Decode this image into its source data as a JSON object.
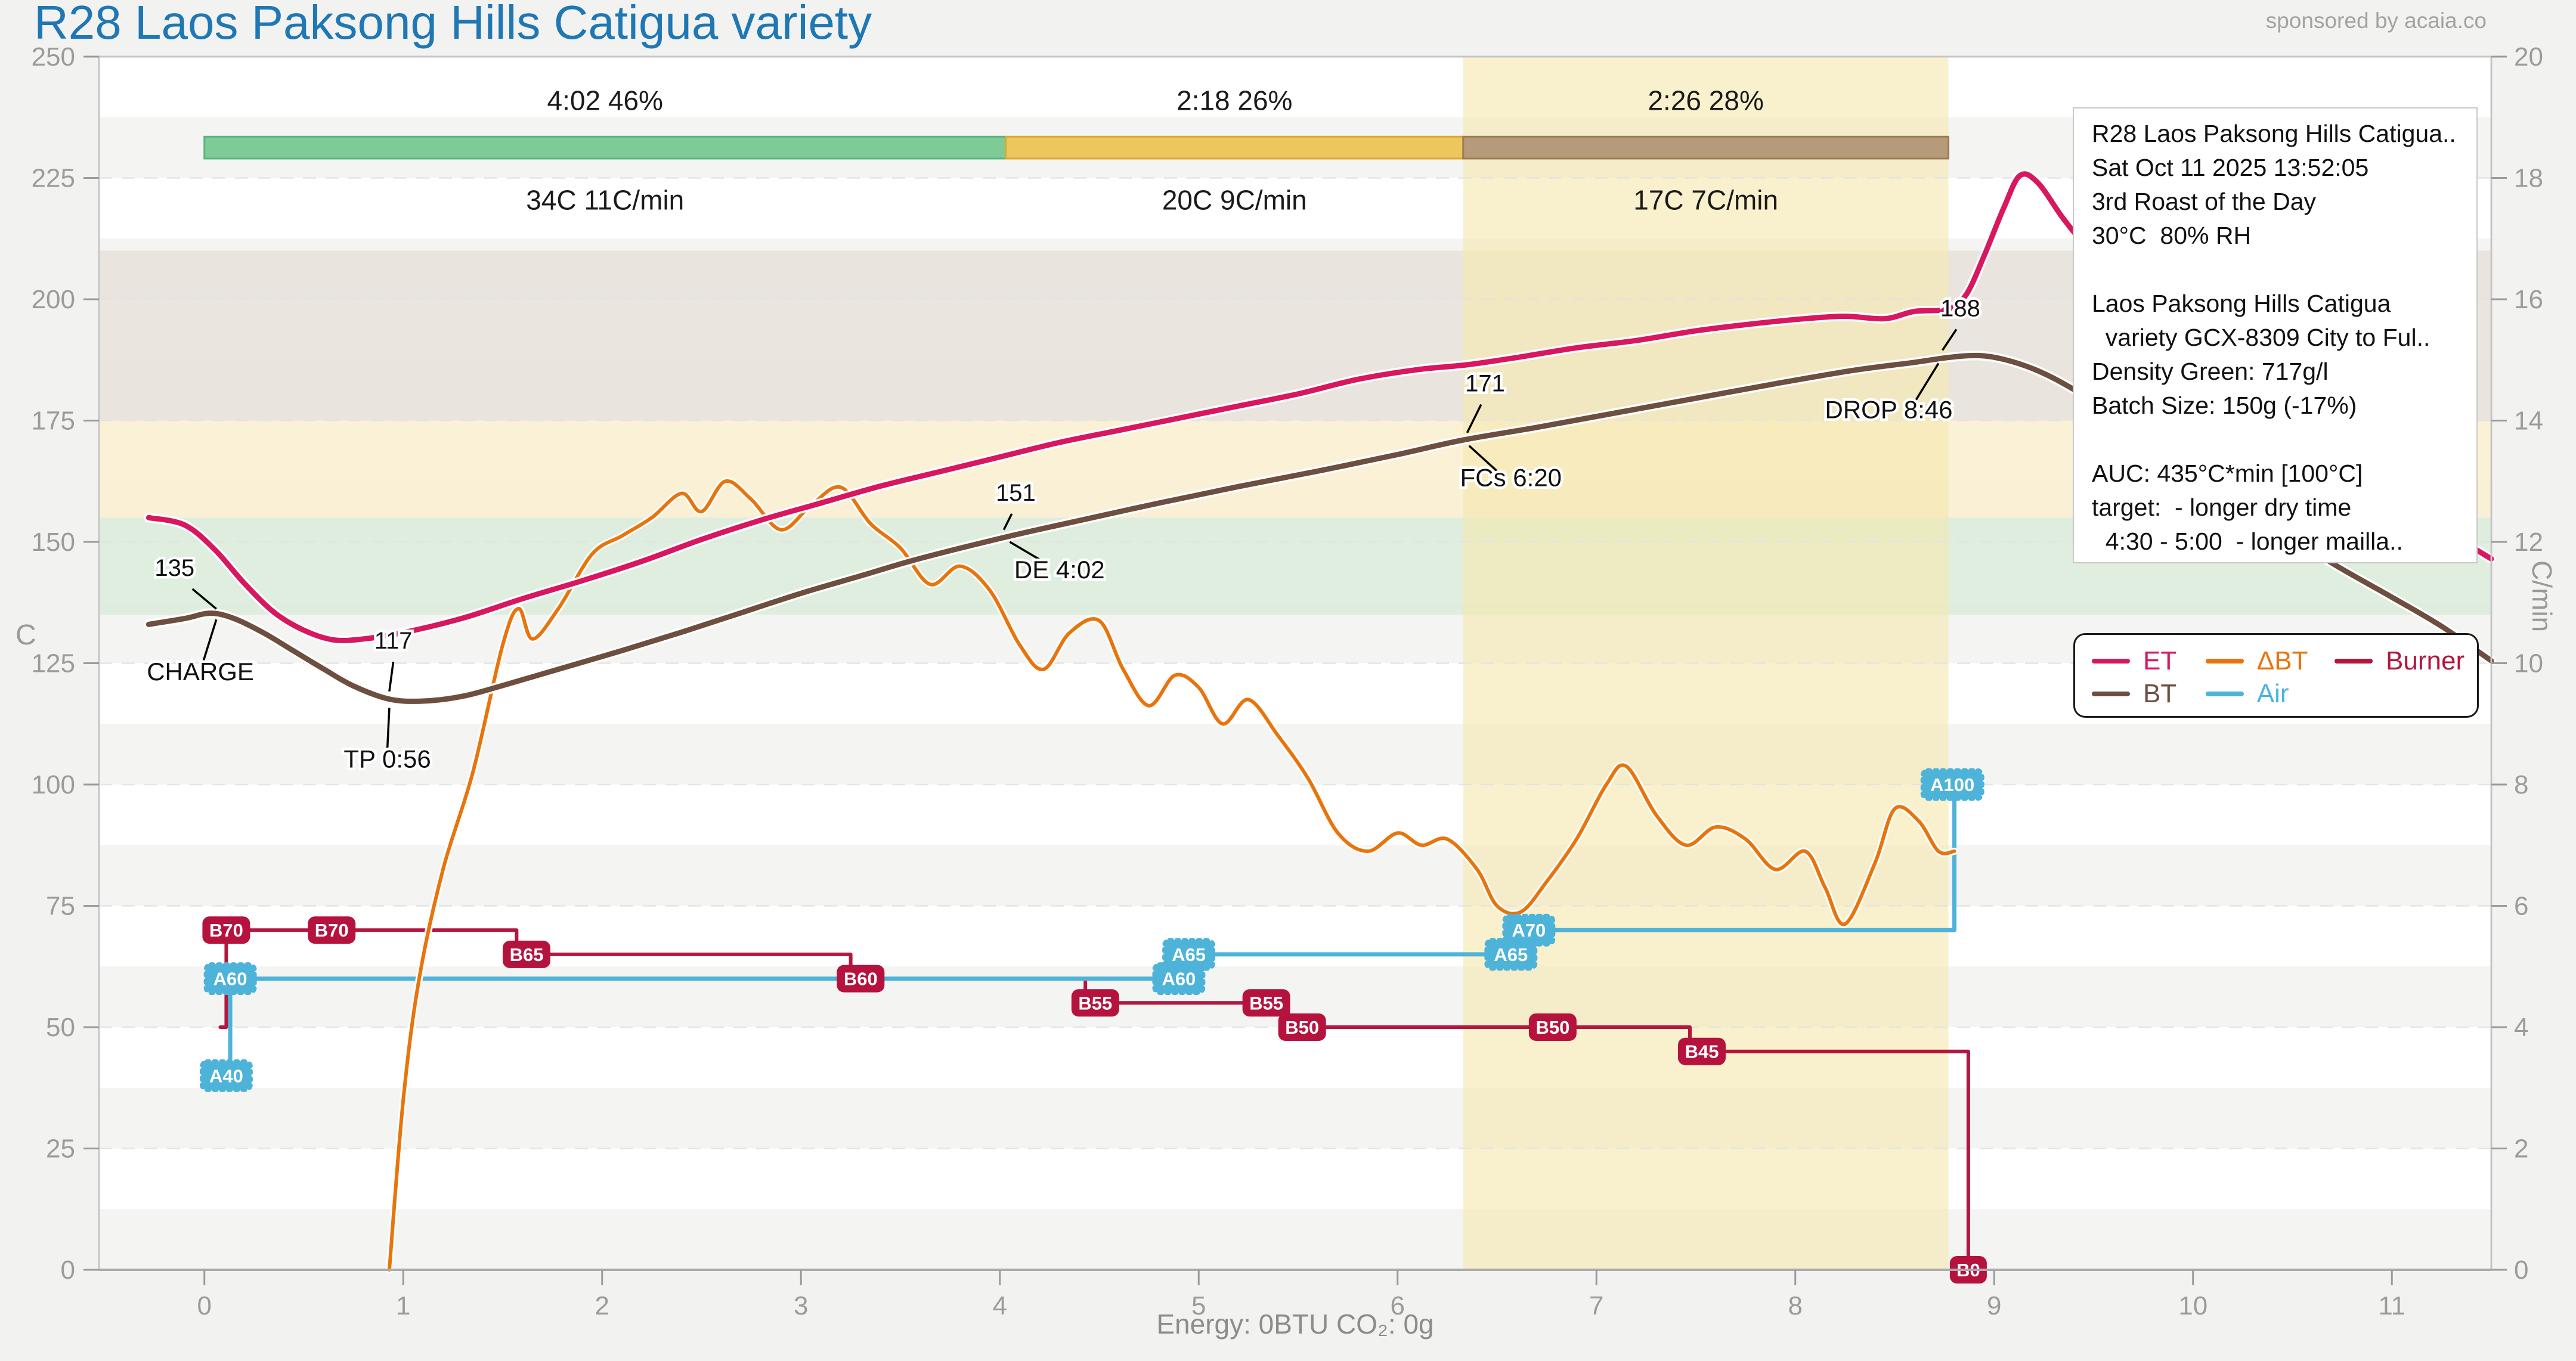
{
  "header": {
    "title": "R28 Laos Paksong Hills Catigua variety",
    "sponsor": "sponsored by acaia.co"
  },
  "axes": {
    "left_label": "C",
    "right_label": "C/min",
    "bottom_caption": "Energy: 0BTU   CO₂: 0g"
  },
  "info_box": {
    "lines": [
      "R28 Laos Paksong Hills Catigua..",
      "Sat Oct 11 2025 13:52:05",
      "3rd Roast of the Day",
      "30°C  80% RH",
      "",
      "Laos Paksong Hills Catigua",
      "  variety GCX-8309 City to Ful..",
      "Density Green: 717g/l",
      "Batch Size: 150g (-17%)",
      "",
      "AUC: 435°C*min [100°C]",
      "target:  - longer dry time",
      "  4:30 - 5:00  - longer mailla.."
    ]
  },
  "legend": {
    "items": [
      {
        "label": "ET",
        "color": "#d8175f"
      },
      {
        "label": "ΔBT",
        "color": "#e8740c"
      },
      {
        "label": "Burner",
        "color": "#b2173f"
      },
      {
        "label": "BT",
        "color": "#6e4f3f"
      },
      {
        "label": "Air",
        "color": "#4db3d9"
      }
    ]
  },
  "chart_data": {
    "type": "line",
    "title": "R28 Laos Paksong Hills Catigua variety",
    "xlabel": "Energy: 0BTU   CO₂: 0g",
    "ylabel": "C",
    "y2label": "C/min",
    "layout": {
      "box": {
        "l": 166,
        "t": 95,
        "r": 4178,
        "b": 2130
      },
      "xlim": [
        -0.53,
        11.5
      ],
      "ylim": [
        0,
        250
      ],
      "y2lim": [
        0,
        20
      ],
      "x_ticks": [
        0,
        1,
        2,
        3,
        4,
        5,
        6,
        7,
        8,
        9,
        10,
        11
      ],
      "y_tick_step": 25,
      "y2_tick_step": 2,
      "stripe_step": 12.5
    },
    "colors": {
      "figure_bg": "#f2f2f0",
      "plot_bg": "#ffffff",
      "stripe": "#f4f4f3",
      "spine": "#c6c6c6",
      "axis_line": "#ababab",
      "tick_text": "#9b9b9b",
      "grid": "#e3e3e3",
      "et": "#d8175f",
      "bt": "#6e4f3f",
      "dbt": "#e8740c",
      "burner": "#b2173f",
      "air": "#4db3d9",
      "burner_badge": "#b5123d",
      "air_badge": "#4db3d9",
      "highlight": "#f5e9ae"
    },
    "background_bands": [
      {
        "from": 135,
        "to": 155,
        "color": "#dcecdc"
      },
      {
        "from": 155,
        "to": 175,
        "color": "#fbf0d3"
      },
      {
        "from": 175,
        "to": 210,
        "color": "#e8e2da"
      }
    ],
    "highlight_span": {
      "from": 6.33,
      "to": 8.77,
      "opacity": 0.62
    },
    "phase_bar": {
      "y_from": 229,
      "y_to": 233.5,
      "label_y": 239,
      "sublabel_y": 218.5,
      "phases": [
        {
          "label": "4:02  46%",
          "sublabel": "34C  11C/min",
          "from": 0.0,
          "to": 4.03,
          "fill": "#7ecb97",
          "stroke": "#5bb47e"
        },
        {
          "label": "2:18  26%",
          "sublabel": "20C  9C/min",
          "from": 4.03,
          "to": 6.33,
          "fill": "#edc75e",
          "stroke": "#d9aa2f"
        },
        {
          "label": "2:26  28%",
          "sublabel": "17C  7C/min",
          "from": 6.33,
          "to": 8.77,
          "fill": "#b69b7a",
          "stroke": "#9e7c53"
        }
      ]
    },
    "series": [
      {
        "name": "Burner",
        "axis": "left",
        "kind": "step",
        "width": 6,
        "color": "#b2173f",
        "points": [
          [
            0.08,
            50
          ],
          [
            0.11,
            50
          ],
          [
            0.11,
            70
          ],
          [
            1.57,
            70
          ],
          [
            1.57,
            65
          ],
          [
            3.25,
            65
          ],
          [
            3.25,
            60
          ],
          [
            4.43,
            60
          ],
          [
            4.43,
            55
          ],
          [
            5.45,
            55
          ],
          [
            5.45,
            50
          ],
          [
            7.47,
            50
          ],
          [
            7.47,
            45
          ],
          [
            8.87,
            45
          ],
          [
            8.87,
            0
          ]
        ]
      },
      {
        "name": "Air",
        "axis": "left",
        "kind": "step",
        "width": 7,
        "color": "#4db3d9",
        "points": [
          [
            0.1,
            40
          ],
          [
            0.13,
            40
          ],
          [
            0.13,
            60
          ],
          [
            4.97,
            60
          ],
          [
            4.97,
            65
          ],
          [
            6.63,
            65
          ],
          [
            6.63,
            70
          ],
          [
            8.8,
            70
          ],
          [
            8.8,
            100
          ]
        ]
      },
      {
        "name": "ΔBT",
        "axis": "right",
        "kind": "smooth",
        "width": 6,
        "halo": 12,
        "color": "#e8740c",
        "points": [
          [
            0.93,
            0
          ],
          [
            1.0,
            2.8
          ],
          [
            1.08,
            4.8
          ],
          [
            1.2,
            6.6
          ],
          [
            1.35,
            8.2
          ],
          [
            1.5,
            10.3
          ],
          [
            1.58,
            10.9
          ],
          [
            1.65,
            10.4
          ],
          [
            1.78,
            10.9
          ],
          [
            1.95,
            11.8
          ],
          [
            2.1,
            12.1
          ],
          [
            2.25,
            12.4
          ],
          [
            2.4,
            12.8
          ],
          [
            2.5,
            12.5
          ],
          [
            2.62,
            13.0
          ],
          [
            2.75,
            12.7
          ],
          [
            2.9,
            12.2
          ],
          [
            3.05,
            12.6
          ],
          [
            3.2,
            12.9
          ],
          [
            3.35,
            12.3
          ],
          [
            3.5,
            11.9
          ],
          [
            3.65,
            11.3
          ],
          [
            3.8,
            11.6
          ],
          [
            3.95,
            11.2
          ],
          [
            4.1,
            10.3
          ],
          [
            4.22,
            9.9
          ],
          [
            4.35,
            10.5
          ],
          [
            4.5,
            10.7
          ],
          [
            4.62,
            9.9
          ],
          [
            4.75,
            9.3
          ],
          [
            4.88,
            9.8
          ],
          [
            5.0,
            9.6
          ],
          [
            5.12,
            9.0
          ],
          [
            5.25,
            9.4
          ],
          [
            5.4,
            8.8
          ],
          [
            5.55,
            8.1
          ],
          [
            5.7,
            7.2
          ],
          [
            5.85,
            6.9
          ],
          [
            6.0,
            7.2
          ],
          [
            6.12,
            7.0
          ],
          [
            6.25,
            7.1
          ],
          [
            6.4,
            6.6
          ],
          [
            6.5,
            6.0
          ],
          [
            6.62,
            5.9
          ],
          [
            6.75,
            6.4
          ],
          [
            6.9,
            7.1
          ],
          [
            7.05,
            8.0
          ],
          [
            7.15,
            8.3
          ],
          [
            7.3,
            7.5
          ],
          [
            7.45,
            7.0
          ],
          [
            7.6,
            7.3
          ],
          [
            7.75,
            7.1
          ],
          [
            7.9,
            6.6
          ],
          [
            8.05,
            6.9
          ],
          [
            8.15,
            6.3
          ],
          [
            8.25,
            5.7
          ],
          [
            8.4,
            6.7
          ],
          [
            8.5,
            7.6
          ],
          [
            8.62,
            7.4
          ],
          [
            8.72,
            6.9
          ],
          [
            8.8,
            6.9
          ]
        ]
      },
      {
        "name": "BT",
        "axis": "left",
        "kind": "smooth",
        "width": 9,
        "halo": 16,
        "color": "#6e4f3f",
        "points": [
          [
            -0.28,
            133
          ],
          [
            -0.1,
            134.2
          ],
          [
            0.03,
            135.3
          ],
          [
            0.15,
            134.2
          ],
          [
            0.3,
            131.2
          ],
          [
            0.45,
            127.5
          ],
          [
            0.6,
            123.8
          ],
          [
            0.75,
            120.3
          ],
          [
            0.93,
            117.6
          ],
          [
            1.1,
            117.2
          ],
          [
            1.3,
            118.2
          ],
          [
            1.5,
            120.4
          ],
          [
            1.8,
            124
          ],
          [
            2.1,
            127.6
          ],
          [
            2.4,
            131.4
          ],
          [
            2.7,
            135.4
          ],
          [
            3.0,
            139.4
          ],
          [
            3.3,
            143
          ],
          [
            3.6,
            146.6
          ],
          [
            4.03,
            151
          ],
          [
            4.4,
            154.4
          ],
          [
            4.8,
            158
          ],
          [
            5.2,
            161.4
          ],
          [
            5.6,
            164.6
          ],
          [
            6.0,
            168
          ],
          [
            6.33,
            171
          ],
          [
            6.7,
            173.6
          ],
          [
            7.1,
            176.6
          ],
          [
            7.5,
            179.6
          ],
          [
            7.9,
            182.6
          ],
          [
            8.3,
            185.4
          ],
          [
            8.6,
            187
          ],
          [
            8.77,
            188
          ],
          [
            8.92,
            188.4
          ],
          [
            9.05,
            187.6
          ],
          [
            9.2,
            185.6
          ],
          [
            9.35,
            182.6
          ],
          [
            9.55,
            177.6
          ],
          [
            9.8,
            170.6
          ],
          [
            10.1,
            162
          ],
          [
            10.4,
            153.6
          ],
          [
            10.7,
            145.6
          ],
          [
            11.0,
            138.6
          ],
          [
            11.25,
            132.6
          ],
          [
            11.5,
            125.5
          ]
        ]
      },
      {
        "name": "ET",
        "axis": "left",
        "kind": "smooth",
        "width": 9,
        "halo": 16,
        "color": "#d8175f",
        "points": [
          [
            -0.28,
            155
          ],
          [
            -0.1,
            153.5
          ],
          [
            0.05,
            148.5
          ],
          [
            0.2,
            141.5
          ],
          [
            0.35,
            135.5
          ],
          [
            0.5,
            131.8
          ],
          [
            0.65,
            129.8
          ],
          [
            0.8,
            130
          ],
          [
            1.0,
            131.3
          ],
          [
            1.3,
            134.3
          ],
          [
            1.6,
            138.3
          ],
          [
            1.9,
            142
          ],
          [
            2.2,
            146
          ],
          [
            2.5,
            150.5
          ],
          [
            2.8,
            154.5
          ],
          [
            3.1,
            158
          ],
          [
            3.4,
            161.5
          ],
          [
            3.7,
            164.5
          ],
          [
            4.0,
            167.5
          ],
          [
            4.3,
            170.5
          ],
          [
            4.6,
            173
          ],
          [
            4.9,
            175.5
          ],
          [
            5.2,
            178
          ],
          [
            5.5,
            180.5
          ],
          [
            5.8,
            183.5
          ],
          [
            6.1,
            185.5
          ],
          [
            6.35,
            186.5
          ],
          [
            6.6,
            188
          ],
          [
            6.9,
            190
          ],
          [
            7.2,
            191.5
          ],
          [
            7.5,
            193.5
          ],
          [
            7.8,
            195
          ],
          [
            8.05,
            196
          ],
          [
            8.25,
            196.5
          ],
          [
            8.45,
            196
          ],
          [
            8.6,
            197.5
          ],
          [
            8.77,
            198
          ],
          [
            8.86,
            201
          ],
          [
            8.95,
            209
          ],
          [
            9.05,
            219
          ],
          [
            9.13,
            225.5
          ],
          [
            9.22,
            224
          ],
          [
            9.35,
            216.5
          ],
          [
            9.5,
            209
          ],
          [
            9.7,
            200
          ],
          [
            10.0,
            189
          ],
          [
            10.3,
            179
          ],
          [
            10.6,
            170
          ],
          [
            10.9,
            161.5
          ],
          [
            11.2,
            154
          ],
          [
            11.5,
            146.5
          ]
        ]
      }
    ],
    "events": [
      {
        "type": "burner",
        "label": "B70",
        "t": 0.11,
        "v": 70
      },
      {
        "type": "burner",
        "label": "B70",
        "t": 0.64,
        "v": 70
      },
      {
        "type": "burner",
        "label": "B65",
        "t": 1.62,
        "v": 65
      },
      {
        "type": "burner",
        "label": "B60",
        "t": 3.3,
        "v": 60
      },
      {
        "type": "burner",
        "label": "B55",
        "t": 4.48,
        "v": 55
      },
      {
        "type": "burner",
        "label": "B55",
        "t": 5.34,
        "v": 55
      },
      {
        "type": "burner",
        "label": "B50",
        "t": 5.52,
        "v": 50
      },
      {
        "type": "burner",
        "label": "B50",
        "t": 6.78,
        "v": 50
      },
      {
        "type": "burner",
        "label": "B45",
        "t": 7.53,
        "v": 45
      },
      {
        "type": "burner",
        "label": "B0",
        "t": 8.87,
        "v": 0
      },
      {
        "type": "air",
        "label": "A40",
        "t": 0.11,
        "v": 40
      },
      {
        "type": "air",
        "label": "A60",
        "t": 0.13,
        "v": 60
      },
      {
        "type": "air",
        "label": "A60",
        "t": 4.9,
        "v": 60
      },
      {
        "type": "air",
        "label": "A65",
        "t": 4.95,
        "v": 65
      },
      {
        "type": "air",
        "label": "A65",
        "t": 6.57,
        "v": 65
      },
      {
        "type": "air",
        "label": "A70",
        "t": 6.66,
        "v": 70
      },
      {
        "type": "air",
        "label": "A100",
        "t": 8.79,
        "v": 100
      }
    ],
    "annotations": {
      "texts": [
        {
          "text": "135",
          "t": -0.15,
          "c": 143,
          "size": 40
        },
        {
          "text": "CHARGE",
          "t": -0.02,
          "c": 121.5,
          "size": 42
        },
        {
          "text": "117",
          "t": 0.95,
          "c": 128,
          "size": 40
        },
        {
          "text": "TP 0:56",
          "t": 0.92,
          "c": 103.5,
          "size": 42
        },
        {
          "text": "151",
          "t": 4.08,
          "c": 158.5,
          "size": 40
        },
        {
          "text": "DE 4:02",
          "t": 4.3,
          "c": 142.5,
          "size": 42
        },
        {
          "text": "171",
          "t": 6.44,
          "c": 181,
          "size": 40
        },
        {
          "text": "FCs 6:20",
          "t": 6.57,
          "c": 161.5,
          "size": 42
        },
        {
          "text": "188",
          "t": 8.83,
          "c": 196.5,
          "size": 40
        },
        {
          "text": "DROP 8:46",
          "t": 8.47,
          "c": 175.5,
          "size": 42
        }
      ],
      "lines": [
        [
          -0.06,
          140.3,
          0.06,
          136.2
        ],
        [
          0.06,
          134.0,
          -0.01,
          124.8
        ],
        [
          0.95,
          125.3,
          0.93,
          119.2
        ],
        [
          0.93,
          115.8,
          0.92,
          107.3
        ],
        [
          4.06,
          155.8,
          4.02,
          152.5
        ],
        [
          4.05,
          150.0,
          4.24,
          145.4
        ],
        [
          6.42,
          178.3,
          6.35,
          172.5
        ],
        [
          6.36,
          169.8,
          6.5,
          164.6
        ],
        [
          8.81,
          193.8,
          8.74,
          189.5
        ],
        [
          8.72,
          186.8,
          8.6,
          178.8
        ]
      ]
    }
  }
}
